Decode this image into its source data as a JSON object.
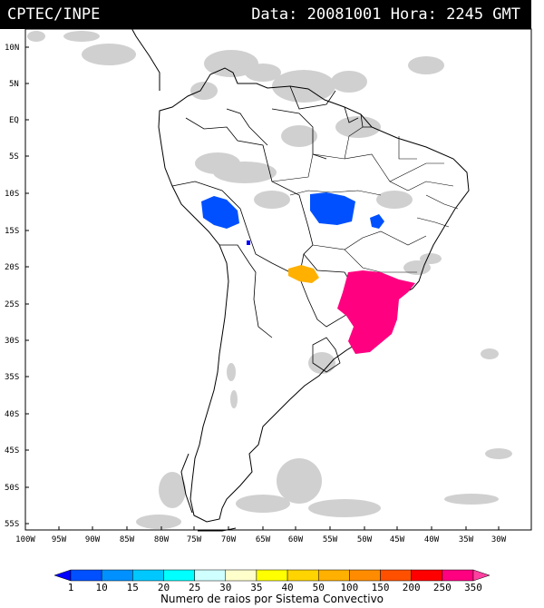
{
  "header": {
    "source": "CPTEC/INPE",
    "datetime": "Data: 20081001 Hora: 2245 GMT"
  },
  "axes": {
    "lat_labels": [
      "10N",
      "5N",
      "EQ",
      "5S",
      "10S",
      "15S",
      "20S",
      "25S",
      "30S",
      "35S",
      "40S",
      "45S",
      "50S",
      "55S"
    ],
    "lon_labels": [
      "100W",
      "95W",
      "90W",
      "85W",
      "80W",
      "75W",
      "70W",
      "65W",
      "60W",
      "55W",
      "50W",
      "45W",
      "40W",
      "35W",
      "30W"
    ]
  },
  "colorbar": {
    "title": "Numero de raios por Sistema Convectivo",
    "ticks": [
      "1",
      "10",
      "15",
      "20",
      "25",
      "30",
      "35",
      "40",
      "50",
      "100",
      "150",
      "200",
      "250",
      "350"
    ],
    "colors": [
      "#0000ff",
      "#0050ff",
      "#0090ff",
      "#00c8ff",
      "#00ffff",
      "#cfffff",
      "#ffffcc",
      "#ffff00",
      "#ffd400",
      "#ffb000",
      "#ff8c00",
      "#ff5000",
      "#ff0000",
      "#ff0080",
      "#ff40a0"
    ]
  },
  "systems": [
    {
      "name": "sys-peru-bolivia",
      "color": "#0050ff"
    },
    {
      "name": "sys-mato-grosso",
      "color": "#0050ff"
    },
    {
      "name": "sys-goias",
      "color": "#0050ff"
    },
    {
      "name": "sys-small-bolivia",
      "color": "#0000ff"
    },
    {
      "name": "sys-paraguay",
      "color": "#ffb000"
    },
    {
      "name": "sys-south-brazil",
      "color": "#ff0080"
    }
  ]
}
